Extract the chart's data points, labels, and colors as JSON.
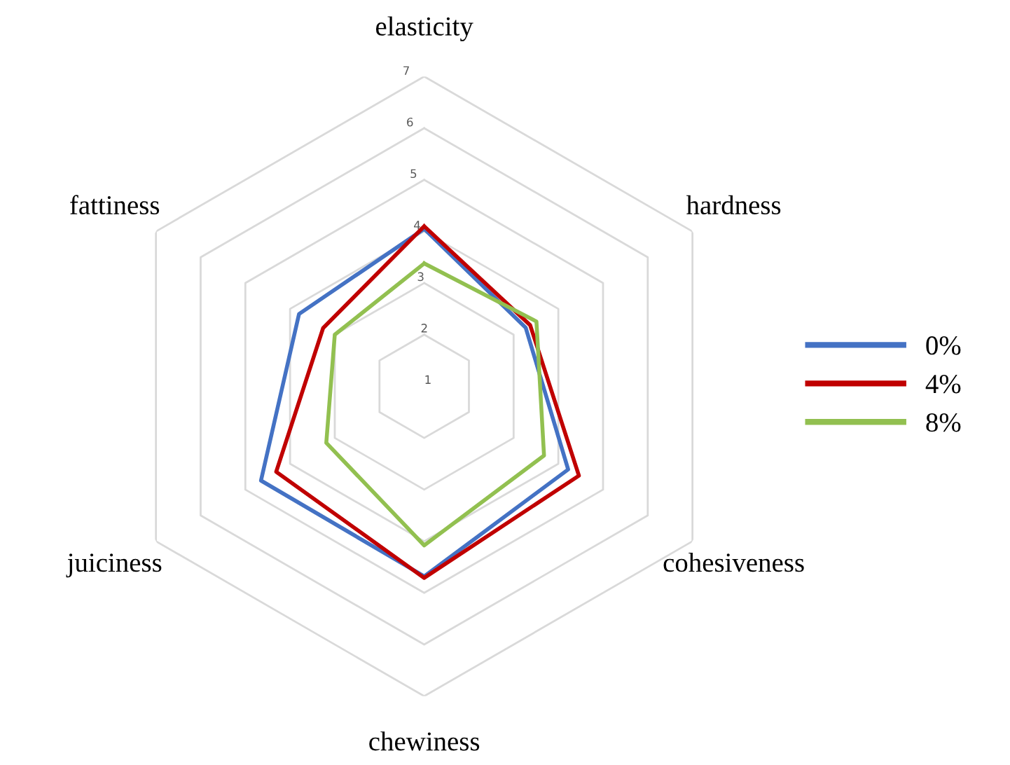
{
  "chart_data": {
    "type": "radar",
    "categories": [
      "elasticity",
      "hardness",
      "cohesiveness",
      "chewiness",
      "juiciness",
      "fattiness"
    ],
    "series": [
      {
        "name": "0%",
        "color": "#4472c4",
        "values": [
          4.05,
          3.27,
          4.22,
          4.68,
          4.65,
          3.8
        ]
      },
      {
        "name": "4%",
        "color": "#c00000",
        "values": [
          4.1,
          3.37,
          4.46,
          4.71,
          4.31,
          3.26
        ]
      },
      {
        "name": "8%",
        "color": "#92c050",
        "values": [
          3.38,
          3.51,
          3.68,
          4.08,
          3.19,
          3.0
        ]
      }
    ],
    "ylim": [
      1,
      7
    ],
    "yticks": [
      1,
      2,
      3,
      4,
      5,
      6,
      7
    ],
    "grid": true,
    "legend": "right",
    "marker": "none",
    "line_style": "solid"
  }
}
